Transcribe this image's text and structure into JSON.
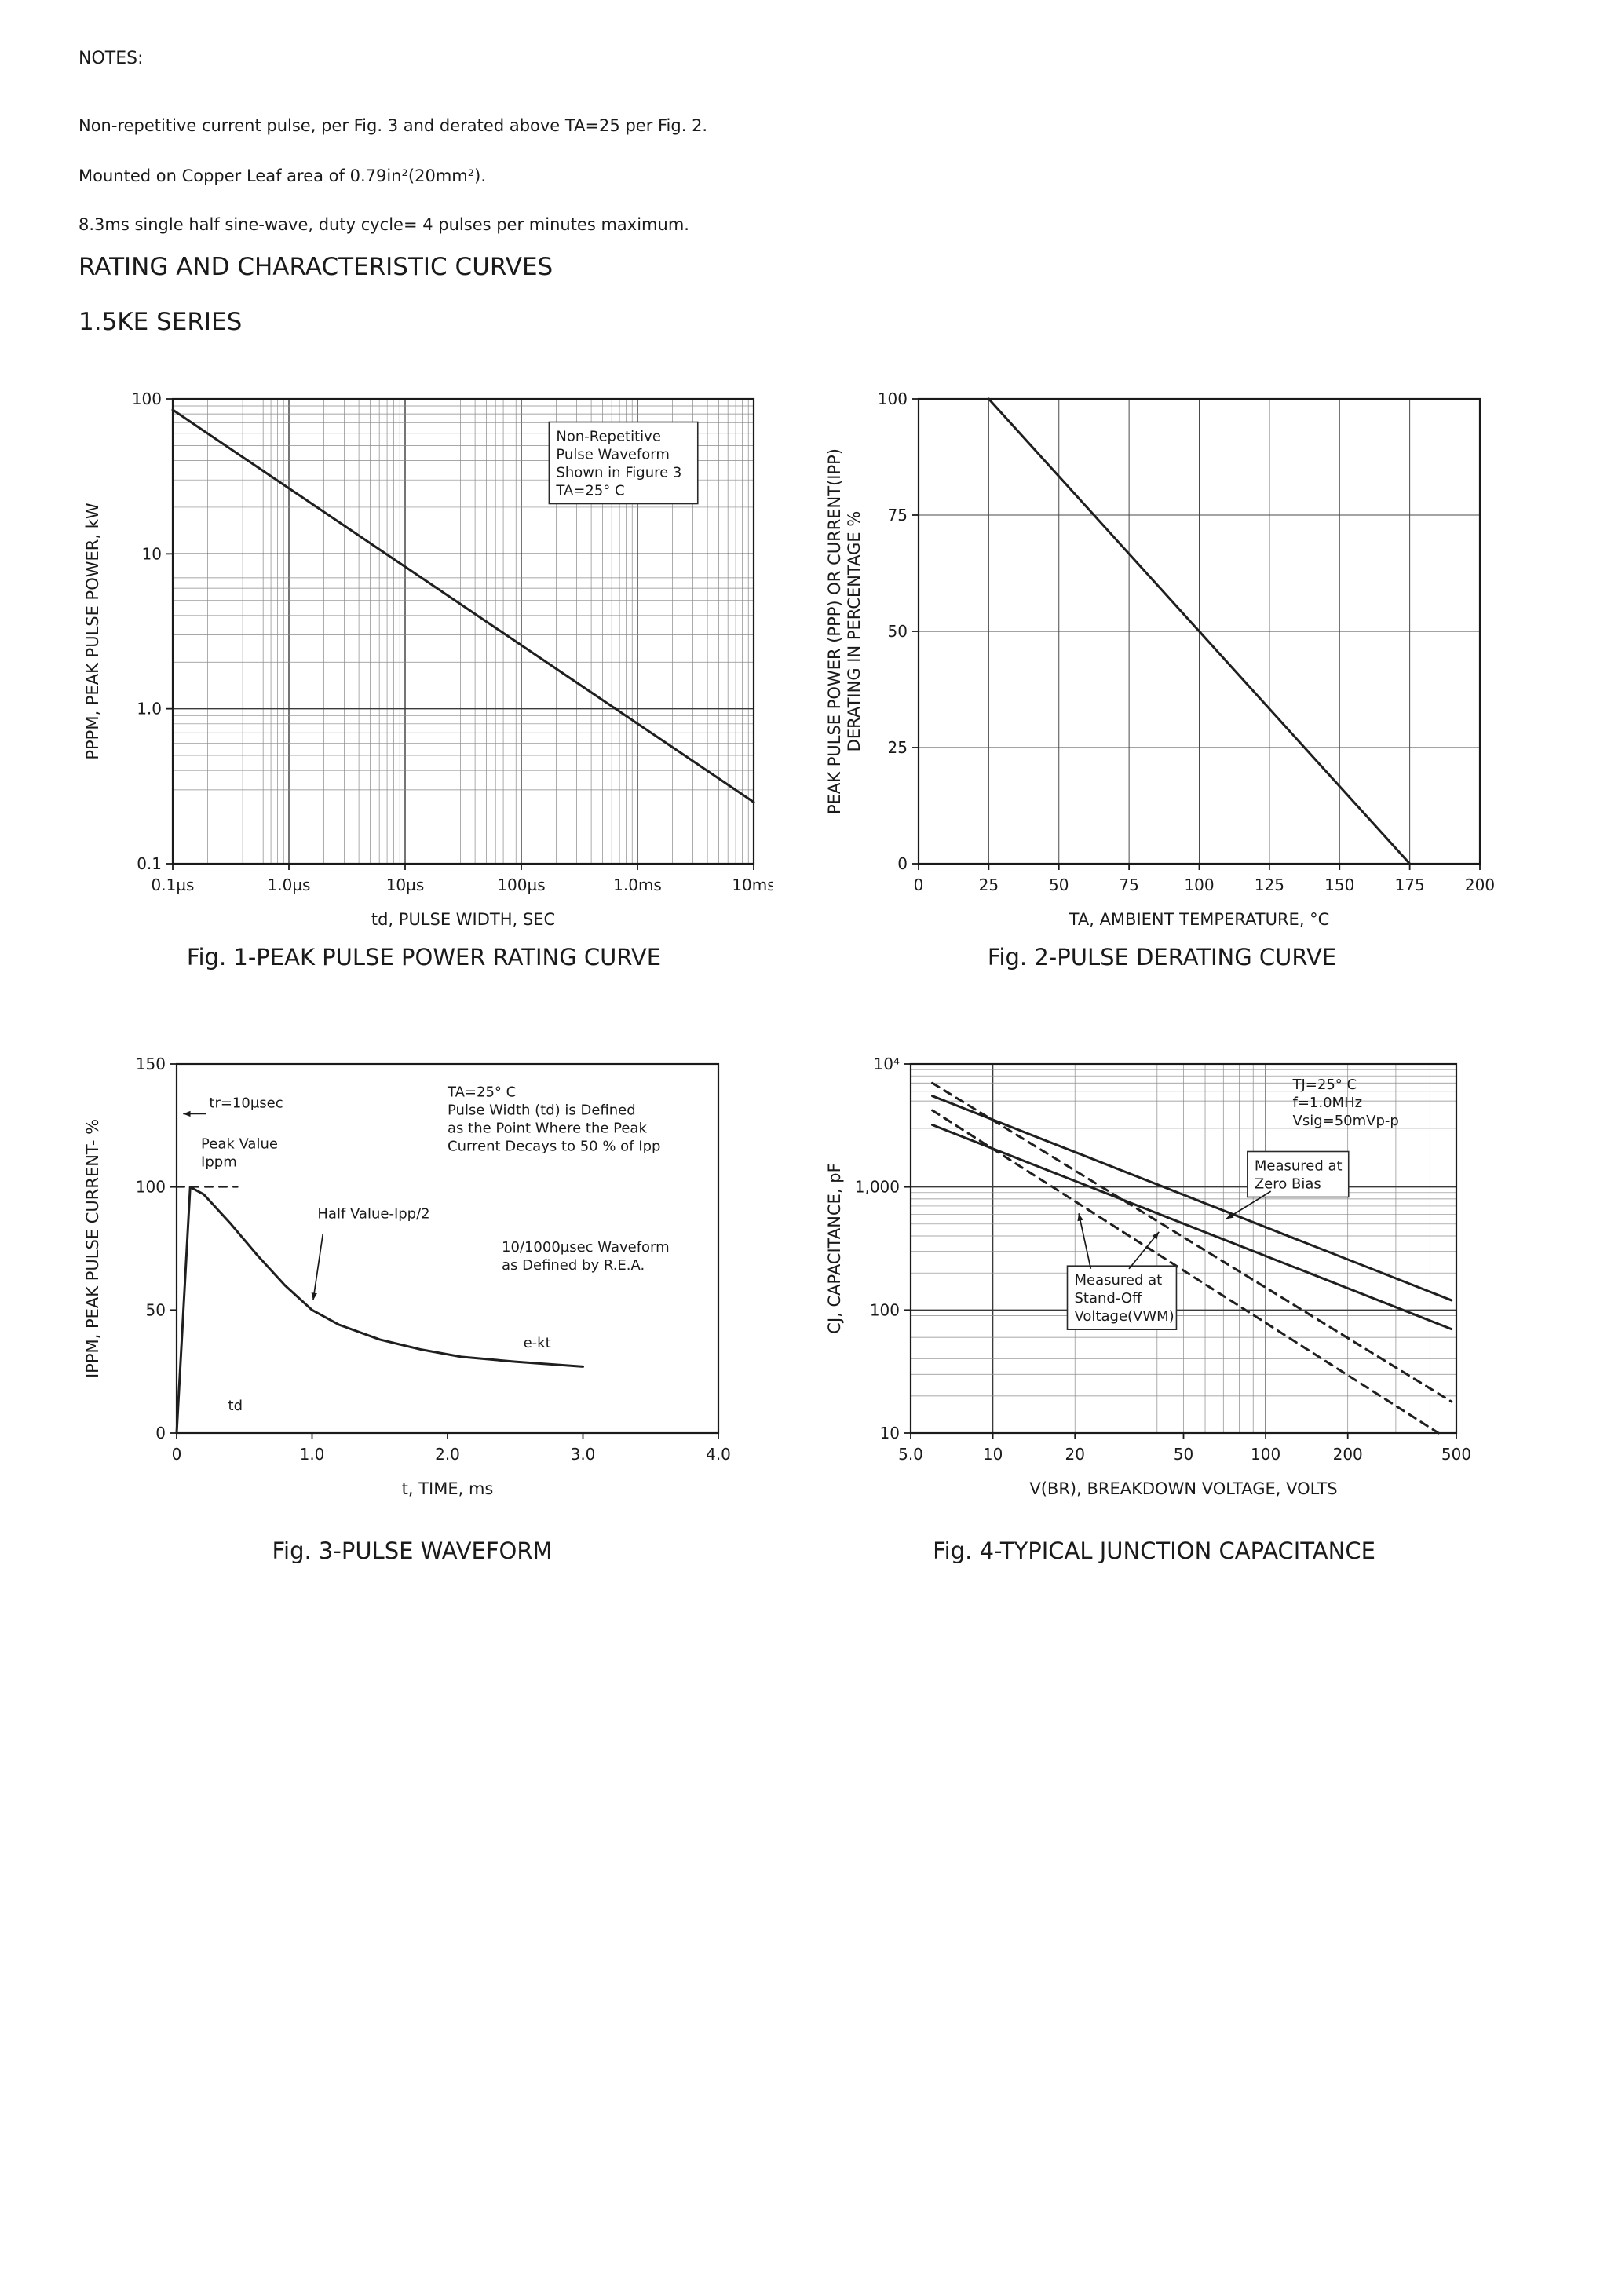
{
  "page": {
    "notes_title": "NOTES:",
    "notes": [
      "Non-repetitive current pulse, per Fig. 3 and derated above TA=25  per Fig. 2.",
      "Mounted on Copper Leaf area of 0.79in²(20mm²).",
      "8.3ms single half sine-wave, duty cycle= 4 pulses per minutes maximum."
    ],
    "heading1": "RATING AND CHARACTERISTIC CURVES",
    "heading2": "1.5KE SERIES"
  },
  "figures": [
    {
      "caption": "Fig. 1-PEAK PULSE POWER RATING CURVE"
    },
    {
      "caption": "Fig. 2-PULSE DERATING CURVE"
    },
    {
      "caption": "Fig. 3-PULSE WAVEFORM"
    },
    {
      "caption": "Fig. 4-TYPICAL JUNCTION CAPACITANCE"
    }
  ],
  "chart_data": [
    {
      "id": "fig1",
      "type": "line",
      "title": "Peak Pulse Power Rating Curve",
      "margins": {
        "l": 125,
        "r": 25,
        "t": 18,
        "b": 100
      },
      "x": {
        "scale": "log",
        "min": 1e-07,
        "max": 0.01,
        "label": "td, PULSE  WIDTH, SEC",
        "ticks": [
          {
            "v": 1e-07,
            "label": "0.1µs"
          },
          {
            "v": 1e-06,
            "label": "1.0µs"
          },
          {
            "v": 1e-05,
            "label": "10µs"
          },
          {
            "v": 0.0001,
            "label": "100µs"
          },
          {
            "v": 0.001,
            "label": "1.0ms"
          },
          {
            "v": 0.01,
            "label": "10ms"
          }
        ]
      },
      "y": {
        "scale": "log",
        "min": 0.1,
        "max": 100,
        "label": [
          "PPPM, PEAK  PULSE  POWER,  kW"
        ],
        "ticks": [
          {
            "v": 0.1,
            "label": "0.1"
          },
          {
            "v": 1,
            "label": "1.0"
          },
          {
            "v": 10,
            "label": "10"
          },
          {
            "v": 100,
            "label": "100"
          }
        ]
      },
      "series": [
        {
          "name": "peak-pulse-power",
          "points": [
            [
              1e-07,
              85
            ],
            [
              0.01,
              0.25
            ]
          ]
        }
      ],
      "annotations": [
        {
          "x": 0.66,
          "y": 0.06,
          "boxed": true,
          "lines": [
            "Non-Repetitive",
            "Pulse Waveform",
            "Shown in Figure 3",
            "TA=25° C"
          ]
        }
      ]
    },
    {
      "id": "fig2",
      "type": "line",
      "title": "Pulse Derating Curve",
      "margins": {
        "l": 130,
        "r": 35,
        "t": 18,
        "b": 100
      },
      "x": {
        "scale": "linear",
        "min": 0,
        "max": 200,
        "label": "TA, AMBIENT   TEMPERATURE, °C",
        "ticks": [
          {
            "v": 0,
            "label": "0"
          },
          {
            "v": 25,
            "label": "25"
          },
          {
            "v": 50,
            "label": "50"
          },
          {
            "v": 75,
            "label": "75"
          },
          {
            "v": 100,
            "label": "100"
          },
          {
            "v": 125,
            "label": "125"
          },
          {
            "v": 150,
            "label": "150"
          },
          {
            "v": 175,
            "label": "175"
          },
          {
            "v": 200,
            "label": "200"
          }
        ]
      },
      "y": {
        "scale": "linear",
        "min": 0,
        "max": 100,
        "label": [
          "PEAK  PULSE  POWER (PPP) OR CURRENT(IPP)",
          "DERATING  IN  PERCENTAGE %"
        ],
        "ticks": [
          {
            "v": 0,
            "label": "0"
          },
          {
            "v": 25,
            "label": "25"
          },
          {
            "v": 50,
            "label": "50"
          },
          {
            "v": 75,
            "label": "75"
          },
          {
            "v": 100,
            "label": "100"
          }
        ]
      },
      "series": [
        {
          "name": "derating-line",
          "points": [
            [
              25,
              100
            ],
            [
              175,
              0
            ]
          ]
        }
      ],
      "annotations": []
    },
    {
      "id": "fig3",
      "type": "line",
      "title": "Pulse Waveform",
      "grid": false,
      "margins": {
        "l": 130,
        "r": 40,
        "t": 25,
        "b": 105
      },
      "x": {
        "scale": "linear",
        "min": 0,
        "max": 4,
        "label": "t, TIME, ms",
        "ticks": [
          {
            "v": 0,
            "label": "0"
          },
          {
            "v": 1,
            "label": "1.0"
          },
          {
            "v": 2,
            "label": "2.0"
          },
          {
            "v": 3,
            "label": "3.0"
          },
          {
            "v": 4,
            "label": "4.0"
          }
        ]
      },
      "y": {
        "scale": "linear",
        "min": 0,
        "max": 150,
        "label": [
          "IPPM, PEAK  PULSE  CURRENT- %"
        ],
        "ticks": [
          {
            "v": 0,
            "label": "0"
          },
          {
            "v": 50,
            "label": "50"
          },
          {
            "v": 100,
            "label": "100"
          },
          {
            "v": 150,
            "label": "150"
          }
        ]
      },
      "series": [
        {
          "name": "pulse-waveform",
          "points": [
            [
              0,
              0
            ],
            [
              0.04,
              40
            ],
            [
              0.08,
              80
            ],
            [
              0.1,
              100
            ],
            [
              0.2,
              97
            ],
            [
              0.4,
              85
            ],
            [
              0.6,
              72
            ],
            [
              0.8,
              60
            ],
            [
              1.0,
              50
            ],
            [
              1.2,
              44
            ],
            [
              1.5,
              38
            ],
            [
              1.8,
              34
            ],
            [
              2.1,
              31
            ],
            [
              2.5,
              29
            ],
            [
              3.0,
              27
            ]
          ]
        },
        {
          "name": "peak-value-dashed",
          "dash": true,
          "width": 2,
          "points": [
            [
              0,
              100
            ],
            [
              0.45,
              100
            ]
          ]
        }
      ],
      "annotations": [
        {
          "x": 0.06,
          "y": 0.08,
          "lines": [
            "tr=10µsec"
          ],
          "arrows": [
            [
              0.055,
              0.135,
              0.012,
              0.135
            ]
          ]
        },
        {
          "x": 0.045,
          "y": 0.19,
          "lines": [
            "Peak Value",
            "Ippm"
          ]
        },
        {
          "x": 0.26,
          "y": 0.38,
          "lines": [
            "Half Value-Ipp/2"
          ],
          "arrows": [
            [
              0.27,
              0.46,
              0.252,
              0.64
            ]
          ]
        },
        {
          "x": 0.5,
          "y": 0.05,
          "lines": [
            "TA=25° C",
            "Pulse Width (td) is Defined",
            "as the Point Where the Peak",
            "Current Decays to 50 % of Ipp"
          ]
        },
        {
          "x": 0.6,
          "y": 0.47,
          "lines": [
            "10/1000µsec Waveform",
            "as Defined by R.E.A."
          ]
        },
        {
          "x": 0.64,
          "y": 0.73,
          "lines": [
            "e-kt"
          ]
        },
        {
          "x": 0.095,
          "y": 0.9,
          "lines": [
            "td"
          ]
        }
      ]
    },
    {
      "id": "fig4",
      "type": "line",
      "title": "Typical Junction Capacitance",
      "margins": {
        "l": 120,
        "r": 45,
        "t": 25,
        "b": 105
      },
      "x": {
        "scale": "log",
        "min": 5,
        "max": 500,
        "label": "V(BR), BREAKDOWN  VOLTAGE, VOLTS",
        "ticks": [
          {
            "v": 5,
            "label": "5.0"
          },
          {
            "v": 10,
            "label": "10"
          },
          {
            "v": 20,
            "label": "20"
          },
          {
            "v": 50,
            "label": "50"
          },
          {
            "v": 100,
            "label": "100"
          },
          {
            "v": 200,
            "label": "200"
          },
          {
            "v": 500,
            "label": "500"
          }
        ]
      },
      "y": {
        "scale": "log",
        "min": 10,
        "max": 10000,
        "label": [
          "CJ, CAPACITANCE, pF"
        ],
        "ticks": [
          {
            "v": 10,
            "label": "10"
          },
          {
            "v": 100,
            "label": "100"
          },
          {
            "v": 1000,
            "label": "1,000"
          },
          {
            "v": 10000,
            "label": "10⁴"
          }
        ]
      },
      "series": [
        {
          "name": "zero-bias-upper",
          "points": [
            [
              6,
              5500
            ],
            [
              480,
              120
            ]
          ]
        },
        {
          "name": "zero-bias-lower",
          "points": [
            [
              6,
              3200
            ],
            [
              480,
              70
            ]
          ]
        },
        {
          "name": "standoff-upper",
          "dash": true,
          "points": [
            [
              6,
              7000
            ],
            [
              480,
              18
            ]
          ]
        },
        {
          "name": "standoff-lower",
          "dash": true,
          "points": [
            [
              6,
              4200
            ],
            [
              430,
              10
            ]
          ]
        }
      ],
      "annotations": [
        {
          "x": 0.7,
          "y": 0.03,
          "boxed": false,
          "lines": [
            "TJ=25° C",
            "f=1.0MHz",
            "Vsig=50mVp-p"
          ]
        },
        {
          "x": 0.63,
          "y": 0.25,
          "boxed": true,
          "lines": [
            "Measured at",
            "Zero Bias"
          ],
          "arrows": [
            [
              0.66,
              0.345,
              0.578,
              0.42
            ]
          ]
        },
        {
          "x": 0.3,
          "y": 0.56,
          "boxed": true,
          "lines": [
            "Measured at",
            "Stand-Off",
            "Voltage(VWM)"
          ],
          "arrows": [
            [
              0.4,
              0.555,
              0.455,
              0.455
            ],
            [
              0.33,
              0.555,
              0.308,
              0.405
            ]
          ]
        }
      ]
    }
  ]
}
